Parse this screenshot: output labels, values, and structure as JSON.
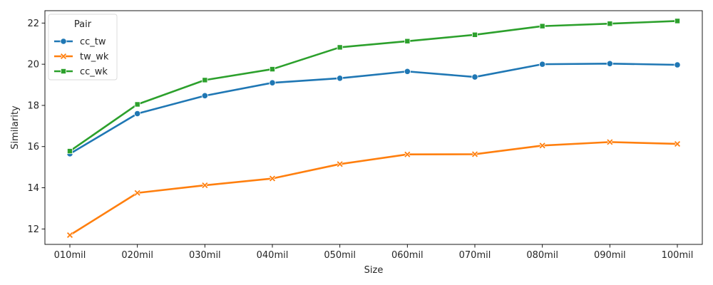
{
  "chart_data": {
    "type": "line",
    "xlabel": "Size",
    "ylabel": "Similarity",
    "categories": [
      "010mil",
      "020mil",
      "030mil",
      "040mil",
      "050mil",
      "060mil",
      "070mil",
      "080mil",
      "090mil",
      "100mil"
    ],
    "ylim": [
      11.25,
      22.6
    ],
    "yticks": [
      12,
      14,
      16,
      18,
      20,
      22
    ],
    "grid": false,
    "legend": {
      "title": "Pair",
      "position": "top-left"
    },
    "series": [
      {
        "name": "cc_tw",
        "color": "#1f77b4",
        "marker": "circle",
        "values": [
          15.65,
          17.6,
          18.47,
          19.1,
          19.32,
          19.65,
          19.38,
          20.0,
          20.03,
          19.97
        ]
      },
      {
        "name": "tw_wk",
        "color": "#ff7f0e",
        "marker": "x",
        "values": [
          11.7,
          13.75,
          14.12,
          14.45,
          15.15,
          15.62,
          15.63,
          16.05,
          16.22,
          16.13
        ]
      },
      {
        "name": "cc_wk",
        "color": "#2ca02c",
        "marker": "square",
        "values": [
          15.78,
          18.05,
          19.23,
          19.76,
          20.82,
          21.12,
          21.43,
          21.85,
          21.97,
          22.1
        ]
      }
    ]
  }
}
